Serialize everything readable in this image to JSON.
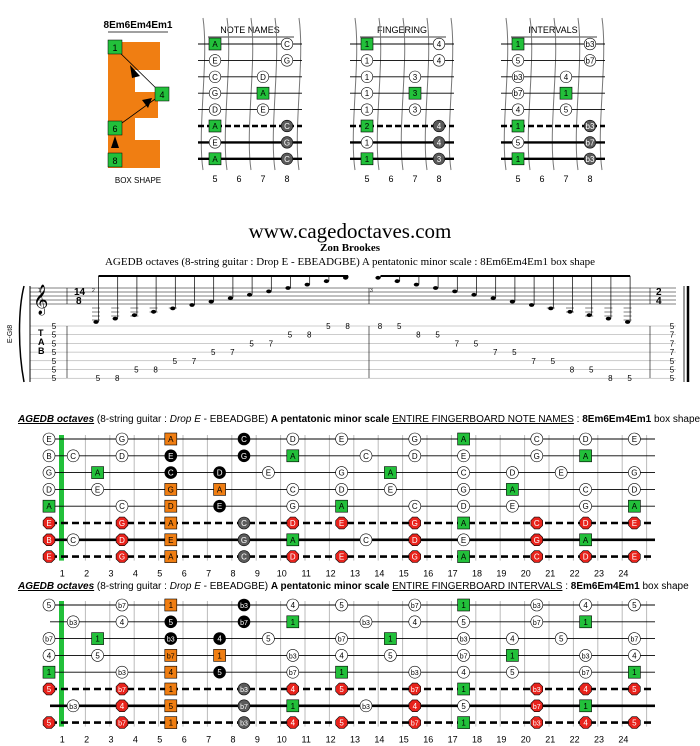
{
  "top_diagrams": {
    "box_title": "8Em6Em4Em1",
    "box_caption": "BOX SHAPE",
    "box_numbers": [
      "1",
      "4",
      "6",
      "8"
    ],
    "box_letter": "E",
    "note_names_title": "NOTE NAMES",
    "fingering_title": "FINGERING",
    "intervals_title": "INTERVALS",
    "fret_numbers": [
      "5",
      "6",
      "7",
      "8"
    ],
    "note_names": [
      [
        "A",
        "",
        "",
        "C"
      ],
      [
        "E",
        "",
        "",
        "G"
      ],
      [
        "C",
        "",
        "D",
        ""
      ],
      [
        "G",
        "",
        "A",
        ""
      ],
      [
        "D",
        "",
        "E",
        ""
      ],
      [
        "A",
        "",
        "",
        "C"
      ],
      [
        "E",
        "",
        "",
        "G"
      ],
      [
        "A",
        "",
        "",
        "C"
      ]
    ],
    "fingering": [
      [
        "1",
        "",
        "",
        "4"
      ],
      [
        "1",
        "",
        "",
        "4"
      ],
      [
        "1",
        "",
        "3",
        ""
      ],
      [
        "1",
        "",
        "3",
        ""
      ],
      [
        "1",
        "",
        "3",
        ""
      ],
      [
        "2",
        "",
        "",
        "4"
      ],
      [
        "1",
        "",
        "",
        "4"
      ],
      [
        "1",
        "",
        "",
        "3"
      ]
    ],
    "intervals": [
      [
        "1",
        "",
        "",
        "b3"
      ],
      [
        "5",
        "",
        "",
        "b7"
      ],
      [
        "b3",
        "",
        "4",
        ""
      ],
      [
        "b7",
        "",
        "1",
        ""
      ],
      [
        "4",
        "",
        "5",
        ""
      ],
      [
        "1",
        "",
        "",
        "b3"
      ],
      [
        "5",
        "",
        "",
        "b7"
      ],
      [
        "1",
        "",
        "",
        "b3"
      ]
    ]
  },
  "header": {
    "site": "www.cagedoctaves.com",
    "author": "Zon Brookes",
    "subtitle": "AGEDB octaves (8-string guitar : Drop E - EBEADGBE) A pentatonic minor scale : 8Em6Em4Em1 box shape"
  },
  "tab": {
    "side_label": "E-Gt8",
    "time_sig_start": [
      "14",
      "8"
    ],
    "time_sig_end": [
      "2",
      "4"
    ],
    "tab_letters": [
      "T",
      "A",
      "B"
    ],
    "measure_numbers": [
      "1",
      "2",
      "3"
    ],
    "asc_notes": [
      {
        "fret": "5",
        "string": 6
      },
      {
        "fret": "8",
        "string": 6
      },
      {
        "fret": "5",
        "string": 5
      },
      {
        "fret": "8",
        "string": 5
      },
      {
        "fret": "5",
        "string": 4
      },
      {
        "fret": "7",
        "string": 4
      },
      {
        "fret": "5",
        "string": 3
      },
      {
        "fret": "7",
        "string": 3
      },
      {
        "fret": "5",
        "string": 2
      },
      {
        "fret": "7",
        "string": 2
      },
      {
        "fret": "5",
        "string": 1
      },
      {
        "fret": "8",
        "string": 1
      },
      {
        "fret": "5",
        "string": 0
      },
      {
        "fret": "8",
        "string": 0
      }
    ],
    "desc_notes": [
      {
        "fret": "8",
        "string": 0
      },
      {
        "fret": "5",
        "string": 0
      },
      {
        "fret": "8",
        "string": 1
      },
      {
        "fret": "5",
        "string": 1
      },
      {
        "fret": "7",
        "string": 2
      },
      {
        "fret": "5",
        "string": 2
      },
      {
        "fret": "7",
        "string": 3
      },
      {
        "fret": "5",
        "string": 3
      },
      {
        "fret": "7",
        "string": 4
      },
      {
        "fret": "5",
        "string": 4
      },
      {
        "fret": "8",
        "string": 5
      },
      {
        "fret": "5",
        "string": 5
      },
      {
        "fret": "8",
        "string": 6
      },
      {
        "fret": "5",
        "string": 6
      }
    ],
    "chord_start": [
      "5",
      "5",
      "5",
      "5",
      "5",
      "5",
      "5"
    ],
    "chord_end": [
      "5",
      "7",
      "7",
      "7",
      "5",
      "5",
      "5"
    ]
  },
  "fretboard_names": {
    "title_bold_italic_underline": "AGEDB octaves",
    "title_rest_1": " (8-string guitar : ",
    "title_tuning_italic": "Drop E",
    "title_rest_2": " - EBEADGBE) ",
    "title_scale_bold": "A pentatonic minor scale",
    "title_space": " ",
    "title_mode_underline": "ENTIRE FINGERBOARD NOTE NAMES",
    "title_colon": " : ",
    "title_box_bold": "8Em6Em4Em1",
    "title_suffix": " box shape",
    "open": [
      "E",
      "B",
      "G",
      "D",
      "A",
      "E",
      "B",
      "E"
    ],
    "strings": [
      {
        "3": "G",
        "5": "A",
        "8": "C",
        "10": "D",
        "12": "E",
        "15": "G",
        "17": "A",
        "20": "C",
        "22": "D",
        "24": "E"
      },
      {
        "1": "C",
        "3": "D",
        "5": "E",
        "8": "G",
        "10": "A",
        "13": "C",
        "15": "D",
        "17": "E",
        "20": "G",
        "22": "A"
      },
      {
        "2": "A",
        "5": "C",
        "7": "D",
        "9": "E",
        "12": "G",
        "14": "A",
        "17": "C",
        "19": "D",
        "21": "E",
        "24": "G"
      },
      {
        "2": "E",
        "5": "G",
        "7": "A",
        "10": "C",
        "12": "D",
        "14": "E",
        "17": "G",
        "19": "A",
        "22": "C",
        "24": "D"
      },
      {
        "3": "C",
        "5": "D",
        "7": "E",
        "10": "G",
        "12": "A",
        "15": "C",
        "17": "D",
        "19": "E",
        "22": "G",
        "24": "A"
      },
      {
        "3": "G",
        "5": "A",
        "8": "C",
        "10": "D",
        "12": "E",
        "15": "G",
        "17": "A",
        "20": "C",
        "22": "D",
        "24": "E"
      },
      {
        "1": "C",
        "3": "D",
        "5": "E",
        "8": "G",
        "10": "A",
        "13": "C",
        "15": "D",
        "17": "E",
        "20": "G",
        "22": "A"
      },
      {
        "3": "G",
        "5": "A",
        "8": "C",
        "10": "D",
        "12": "E",
        "15": "G",
        "17": "A",
        "20": "C",
        "22": "D",
        "24": "E"
      }
    ]
  },
  "fretboard_intervals": {
    "title_bold_italic_underline": "AGEDB octaves",
    "title_rest_1": " (8-string guitar : ",
    "title_tuning_italic": "Drop E",
    "title_rest_2": " - EBEADGBE) ",
    "title_scale_bold": "A pentatonic minor scale",
    "title_space": " ",
    "title_mode_underline": "ENTIRE FINGERBOARD INTERVALS",
    "title_colon": " : ",
    "title_box_bold": "8Em6Em4Em1",
    "title_suffix": " box shape",
    "open": [
      "5",
      "",
      "b7",
      "4",
      "1",
      "5",
      "",
      "5"
    ],
    "strings": [
      {
        "3": "b7",
        "5": "1",
        "8": "b3",
        "10": "4",
        "12": "5",
        "15": "b7",
        "17": "1",
        "20": "b3",
        "22": "4",
        "24": "5"
      },
      {
        "1": "b3",
        "3": "4",
        "5": "5",
        "8": "b7",
        "10": "1",
        "13": "b3",
        "15": "4",
        "17": "5",
        "20": "b7",
        "22": "1"
      },
      {
        "2": "1",
        "5": "b3",
        "7": "4",
        "9": "5",
        "12": "b7",
        "14": "1",
        "17": "b3",
        "19": "4",
        "21": "5",
        "24": "b7"
      },
      {
        "2": "5",
        "5": "b7",
        "7": "1",
        "10": "b3",
        "12": "4",
        "14": "5",
        "17": "b7",
        "19": "1",
        "22": "b3",
        "24": "4"
      },
      {
        "3": "b3",
        "5": "4",
        "7": "5",
        "10": "b7",
        "12": "1",
        "15": "b3",
        "17": "4",
        "19": "5",
        "22": "b7",
        "24": "1"
      },
      {
        "3": "b7",
        "5": "1",
        "8": "b3",
        "10": "4",
        "12": "5",
        "15": "b7",
        "17": "1",
        "20": "b3",
        "22": "4",
        "24": "5"
      },
      {
        "1": "b3",
        "3": "4",
        "5": "5",
        "8": "b7",
        "10": "1",
        "13": "b3",
        "15": "4",
        "17": "5",
        "20": "b7",
        "22": "1"
      },
      {
        "3": "b7",
        "5": "1",
        "8": "b3",
        "10": "4",
        "12": "5",
        "15": "b7",
        "17": "1",
        "20": "b3",
        "22": "4",
        "24": "5"
      }
    ]
  },
  "fret_numbers": [
    "1",
    "2",
    "3",
    "4",
    "5",
    "6",
    "7",
    "8",
    "9",
    "10",
    "11",
    "12",
    "13",
    "14",
    "15",
    "16",
    "17",
    "18",
    "19",
    "20",
    "21",
    "22",
    "23",
    "24"
  ],
  "colors": {
    "root_green": "#22c03a",
    "box_orange": "#f07e12",
    "black_note": "#000000",
    "grey_note": "#5a5a5a",
    "red_note": "#e8231c",
    "white_note": "#ffffff",
    "link_blue": "#1f4fd8"
  }
}
